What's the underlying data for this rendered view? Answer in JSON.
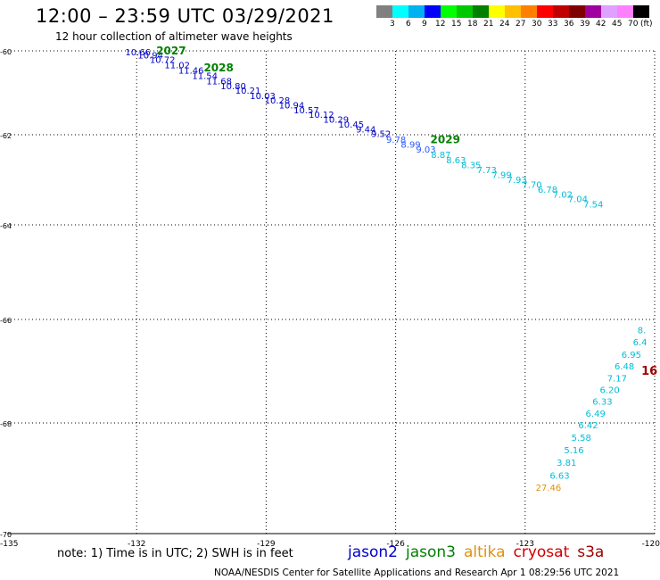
{
  "header": {
    "title": "12:00 – 23:59 UTC 03/29/2021",
    "subtitle": "12 hour collection of altimeter wave heights"
  },
  "colorbar": {
    "colors": [
      "#808080",
      "#00ffff",
      "#00b0f0",
      "#0000ff",
      "#00ff00",
      "#00c800",
      "#008000",
      "#ffff00",
      "#ffc000",
      "#ff8000",
      "#ff0000",
      "#c00000",
      "#800000",
      "#a000a0",
      "#e0a0ff",
      "#ff80ff",
      "#000000"
    ],
    "labels": [
      "3",
      "6",
      "9",
      "12",
      "15",
      "18",
      "21",
      "24",
      "27",
      "30",
      "33",
      "36",
      "39",
      "42",
      "45",
      "70",
      "(ft)"
    ]
  },
  "axes": {
    "lon_labels": [
      "-135",
      "-132",
      "-129",
      "-126",
      "-123",
      "-120"
    ],
    "lat_labels": [
      "-60",
      "-62",
      "-64",
      "-66",
      "-68",
      "-70"
    ]
  },
  "chart_data": {
    "type": "scatter",
    "title": "12:00 – 23:59 UTC 03/29/2021",
    "subtitle": "12 hour collection of altimeter wave heights",
    "xlim": [
      -135,
      -120
    ],
    "ylim": [
      -70,
      -60
    ],
    "xticks": [
      -132,
      -129,
      -126,
      -123,
      -120
    ],
    "yticks": [
      -60,
      -62,
      -64,
      -66,
      -68,
      -70
    ],
    "grid": true,
    "series": [
      {
        "name": "jason2",
        "color": "#0000c8",
        "points": [
          {
            "lon": -131.97,
            "lat": -60.02,
            "label": "10.66"
          },
          {
            "lon": -131.68,
            "lat": -60.1,
            "label": "10.94"
          },
          {
            "lon": -131.4,
            "lat": -60.2,
            "label": "10.72"
          },
          {
            "lon": -131.06,
            "lat": -60.33,
            "label": "11.02"
          },
          {
            "lon": -130.74,
            "lat": -60.46,
            "label": "11.46"
          },
          {
            "lon": -130.42,
            "lat": -60.58,
            "label": "11.54"
          },
          {
            "lon": -130.09,
            "lat": -60.71,
            "label": "11.68"
          },
          {
            "lon": -129.76,
            "lat": -60.83,
            "label": "10.80"
          },
          {
            "lon": -129.42,
            "lat": -60.94,
            "label": "10.21"
          },
          {
            "lon": -129.08,
            "lat": -61.06,
            "label": "10.03"
          },
          {
            "lon": -128.74,
            "lat": -61.17,
            "label": "10.28"
          },
          {
            "lon": -128.41,
            "lat": -61.29,
            "label": "10.94"
          },
          {
            "lon": -128.07,
            "lat": -61.4,
            "label": "10.57"
          },
          {
            "lon": -127.72,
            "lat": -61.51,
            "label": "10.12"
          },
          {
            "lon": -127.38,
            "lat": -61.63,
            "label": "10.29"
          },
          {
            "lon": -127.03,
            "lat": -61.74,
            "label": "10.45"
          },
          {
            "lon": -126.69,
            "lat": -61.86,
            "label": "9.44"
          },
          {
            "lon": -126.34,
            "lat": -61.97,
            "label": "9.52"
          }
        ]
      },
      {
        "name": "jason2-blue",
        "color": "#2a5aff",
        "points": [
          {
            "lon": -125.99,
            "lat": -62.1,
            "label": "9.78"
          },
          {
            "lon": -125.65,
            "lat": -62.21,
            "label": "8.99"
          },
          {
            "lon": -125.3,
            "lat": -62.32,
            "label": "9.03"
          }
        ]
      },
      {
        "name": "jason3",
        "color": "#00bcd8",
        "points": [
          {
            "lon": -124.95,
            "lat": -62.44,
            "label": "8.87"
          },
          {
            "lon": -124.6,
            "lat": -62.55,
            "label": "8.63"
          },
          {
            "lon": -124.25,
            "lat": -62.66,
            "label": "8.35"
          },
          {
            "lon": -123.89,
            "lat": -62.77,
            "label": "7.73"
          },
          {
            "lon": -123.54,
            "lat": -62.88,
            "label": "7.99"
          },
          {
            "lon": -123.19,
            "lat": -62.99,
            "label": "7.93"
          },
          {
            "lon": -122.84,
            "lat": -63.1,
            "label": "7.70"
          },
          {
            "lon": -122.48,
            "lat": -63.21,
            "label": "6.78"
          },
          {
            "lon": -122.13,
            "lat": -63.32,
            "label": "7.02"
          },
          {
            "lon": -121.78,
            "lat": -63.42,
            "label": "7.04"
          },
          {
            "lon": -121.42,
            "lat": -63.53,
            "label": "7.54"
          },
          {
            "lon": -120.3,
            "lat": -66.2,
            "label": "8."
          },
          {
            "lon": -120.34,
            "lat": -66.43,
            "label": "6.4"
          },
          {
            "lon": -120.54,
            "lat": -66.67,
            "label": "6.95"
          },
          {
            "lon": -120.7,
            "lat": -66.9,
            "label": "6.48"
          },
          {
            "lon": -120.87,
            "lat": -67.13,
            "label": "7.17"
          },
          {
            "lon": -121.04,
            "lat": -67.35,
            "label": "6.20"
          },
          {
            "lon": -121.21,
            "lat": -67.58,
            "label": "6.33"
          },
          {
            "lon": -121.37,
            "lat": -67.81,
            "label": "6.49"
          },
          {
            "lon": -121.54,
            "lat": -68.03,
            "label": "6.42"
          },
          {
            "lon": -121.7,
            "lat": -68.26,
            "label": "5.58"
          },
          {
            "lon": -121.87,
            "lat": -68.48,
            "label": "5.16"
          },
          {
            "lon": -122.04,
            "lat": -68.71,
            "label": "3.81"
          },
          {
            "lon": -122.2,
            "lat": -68.94,
            "label": "6.63"
          }
        ]
      },
      {
        "name": "altika",
        "color": "#e09010",
        "points": [
          {
            "lon": -122.46,
            "lat": -69.16,
            "label": "27.46"
          }
        ]
      },
      {
        "name": "cryosat",
        "color": "#a00000",
        "points": [
          {
            "lon": -120.12,
            "lat": -67.0,
            "label": "16"
          }
        ]
      }
    ],
    "pass_numbers": [
      {
        "lon": -131.2,
        "lat": -60.0,
        "label": "2027",
        "color": "#008000"
      },
      {
        "lon": -130.1,
        "lat": -60.4,
        "label": "2028",
        "color": "#008000"
      },
      {
        "lon": -124.85,
        "lat": -62.11,
        "label": "2029",
        "color": "#008000"
      }
    ]
  },
  "note": {
    "text": "note: 1) Time is in UTC; 2) SWH is in feet"
  },
  "satellites": [
    {
      "name": "jason2",
      "color": "#0000c8"
    },
    {
      "name": "jason3",
      "color": "#008000"
    },
    {
      "name": "altika",
      "color": "#e09010"
    },
    {
      "name": "cryosat",
      "color": "#d00000"
    },
    {
      "name": "s3a",
      "color": "#a00000"
    }
  ],
  "footer": {
    "credit": "NOAA/NESDIS Center for Satellite Applications and Research    Apr  1 08:29:56 UTC 2021"
  }
}
